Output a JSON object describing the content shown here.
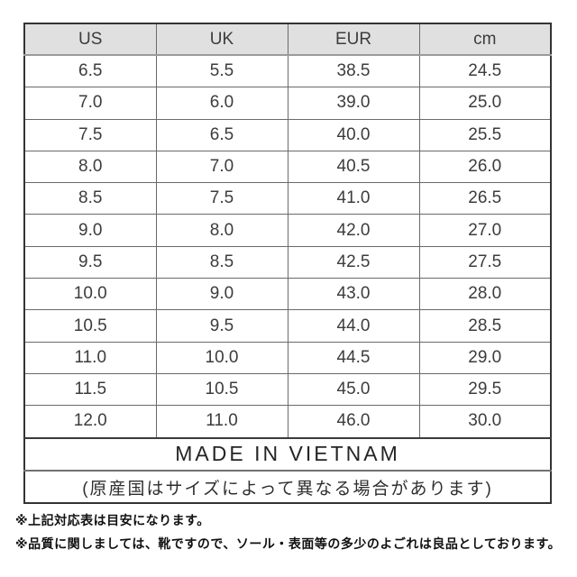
{
  "size_chart": {
    "headers": [
      "US",
      "UK",
      "EUR",
      "cm"
    ],
    "rows": [
      [
        "6.5",
        "5.5",
        "38.5",
        "24.5"
      ],
      [
        "7.0",
        "6.0",
        "39.0",
        "25.0"
      ],
      [
        "7.5",
        "6.5",
        "40.0",
        "25.5"
      ],
      [
        "8.0",
        "7.0",
        "40.5",
        "26.0"
      ],
      [
        "8.5",
        "7.5",
        "41.0",
        "26.5"
      ],
      [
        "9.0",
        "8.0",
        "42.0",
        "27.0"
      ],
      [
        "9.5",
        "8.5",
        "42.5",
        "27.5"
      ],
      [
        "10.0",
        "9.0",
        "43.0",
        "28.0"
      ],
      [
        "10.5",
        "9.5",
        "44.0",
        "28.5"
      ],
      [
        "11.0",
        "10.0",
        "44.5",
        "29.0"
      ],
      [
        "11.5",
        "10.5",
        "45.0",
        "29.5"
      ],
      [
        "12.0",
        "11.0",
        "46.0",
        "30.0"
      ]
    ],
    "origin_label": "MADE IN VIETNAM",
    "origin_note": "(原産国はサイズによって異なる場合があります)"
  },
  "notes": [
    "※上記対応表は目安になります。",
    "※品質に関しましては、靴ですので、ソール・表面等の多少のよごれは良品としております。"
  ],
  "colors": {
    "header_bg": "#e0e0e0",
    "outer_border": "#333333",
    "inner_border": "#6a6a6a",
    "cell_text": "#3c3c3c",
    "note_text": "#111111"
  },
  "chart_data": {
    "type": "table",
    "title": "Shoe size conversion chart (US / UK / EUR / cm)",
    "columns": [
      "US",
      "UK",
      "EUR",
      "cm"
    ],
    "rows": [
      [
        6.5,
        5.5,
        38.5,
        24.5
      ],
      [
        7.0,
        6.0,
        39.0,
        25.0
      ],
      [
        7.5,
        6.5,
        40.0,
        25.5
      ],
      [
        8.0,
        7.0,
        40.5,
        26.0
      ],
      [
        8.5,
        7.5,
        41.0,
        26.5
      ],
      [
        9.0,
        8.0,
        42.0,
        27.0
      ],
      [
        9.5,
        8.5,
        42.5,
        27.5
      ],
      [
        10.0,
        9.0,
        43.0,
        28.0
      ],
      [
        10.5,
        9.5,
        44.0,
        28.5
      ],
      [
        11.0,
        10.0,
        44.5,
        29.0
      ],
      [
        11.5,
        10.5,
        45.0,
        29.5
      ],
      [
        12.0,
        11.0,
        46.0,
        30.0
      ]
    ],
    "footer_rows": [
      "MADE IN VIETNAM",
      "(原産国はサイズによって異なる場合があります)"
    ],
    "annotations": [
      "※上記対応表は目安になります。",
      "※品質に関しましては、靴ですので、ソール・表面等の多少のよごれは良品としております。"
    ],
    "layout_hints": {
      "header_background": "#e0e0e0",
      "grid": true
    }
  }
}
